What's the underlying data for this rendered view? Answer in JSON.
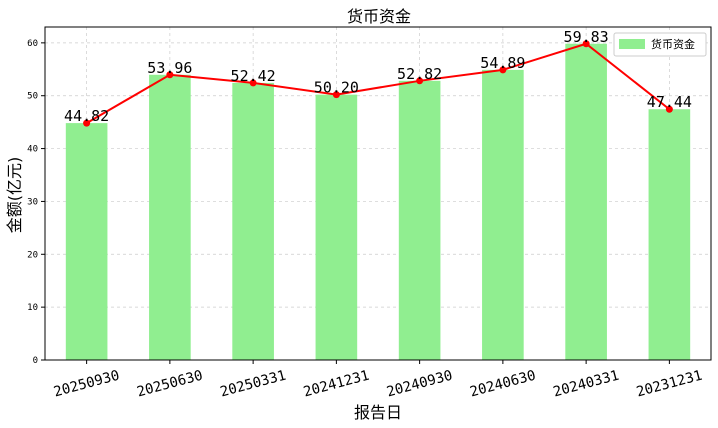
{
  "chart_data": {
    "type": "bar",
    "title": "货币资金",
    "xlabel": "报告日",
    "ylabel": "金额(亿元)",
    "categories": [
      "20250930",
      "20250630",
      "20250331",
      "20241231",
      "20240930",
      "20240630",
      "20240331",
      "20231231"
    ],
    "series": [
      {
        "name": "货币资金",
        "values": [
          44.82,
          53.96,
          52.42,
          50.2,
          52.82,
          54.89,
          59.83,
          47.44
        ]
      }
    ],
    "value_labels": [
      "44.82",
      "53.96",
      "52.42",
      "50.20",
      "52.82",
      "54.89",
      "59.83",
      "47.44"
    ],
    "line_overlay": true,
    "yticks": [
      0,
      10,
      20,
      30,
      40,
      50,
      60
    ],
    "ylim": [
      0,
      63
    ],
    "grid": true,
    "legend_position": "top-right",
    "colors": {
      "bar": "#90ee90",
      "line": "#ff0000",
      "marker": "#ff0000"
    }
  }
}
